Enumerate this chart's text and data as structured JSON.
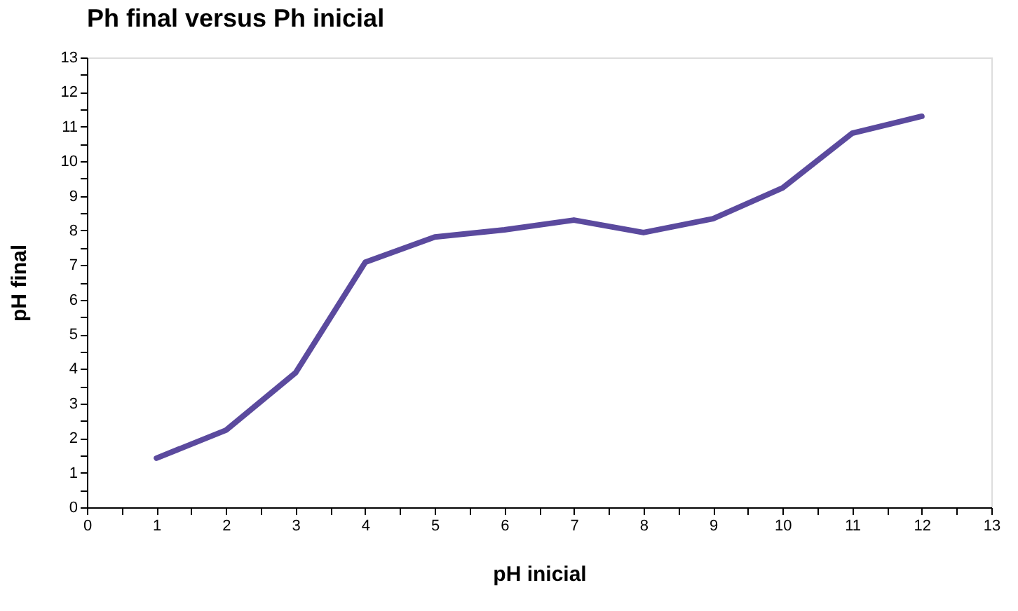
{
  "chart_data": {
    "type": "line",
    "title": "Ph final versus Ph inicial",
    "xlabel": "pH inicial",
    "ylabel": "pH final",
    "x": [
      1,
      2,
      3,
      4,
      5,
      6,
      7,
      8,
      9,
      10,
      11,
      12
    ],
    "series": [
      {
        "color": "#5b4a9e",
        "values": [
          1.42,
          2.23,
          3.89,
          7.08,
          7.81,
          8.02,
          8.3,
          7.94,
          8.34,
          9.23,
          10.81,
          11.3
        ]
      }
    ],
    "xlim": [
      0,
      13
    ],
    "ylim": [
      0,
      13
    ],
    "xticks": [
      0,
      {
        "value": 0.5,
        "label": null
      },
      1,
      {
        "value": 1.5,
        "label": null
      },
      2,
      {
        "value": 2.5,
        "label": null
      },
      3,
      {
        "value": 3.5,
        "label": null
      },
      4,
      {
        "value": 4.5,
        "label": null
      },
      5,
      {
        "value": 5.5,
        "label": null
      },
      6,
      {
        "value": 6.5,
        "label": null
      },
      7,
      {
        "value": 7.5,
        "label": null
      },
      8,
      {
        "value": 8.5,
        "label": null
      },
      9,
      {
        "value": 9.5,
        "label": null
      },
      10,
      {
        "value": 10.5,
        "label": null
      },
      11,
      {
        "value": 11.5,
        "label": null
      },
      12,
      {
        "value": 12.5,
        "label": null
      },
      13
    ],
    "yticks": [
      0,
      {
        "value": 0.5,
        "label": null
      },
      1,
      {
        "value": 1.5,
        "label": null
      },
      2,
      {
        "value": 2.5,
        "label": null
      },
      3,
      {
        "value": 3.5,
        "label": null
      },
      4,
      {
        "value": 4.5,
        "label": null
      },
      5,
      {
        "value": 5.5,
        "label": null
      },
      6,
      {
        "value": 6.5,
        "label": null
      },
      7,
      {
        "value": 7.5,
        "label": null
      },
      8,
      {
        "value": 8.5,
        "label": null
      },
      9,
      {
        "value": 9.5,
        "label": null
      },
      10,
      {
        "value": 10.5,
        "label": null
      },
      11,
      {
        "value": 11.5,
        "label": null
      },
      12,
      {
        "value": 12.5,
        "label": null
      },
      13
    ],
    "grid": false,
    "legend": false,
    "marker": "none",
    "line_style": "solid"
  }
}
